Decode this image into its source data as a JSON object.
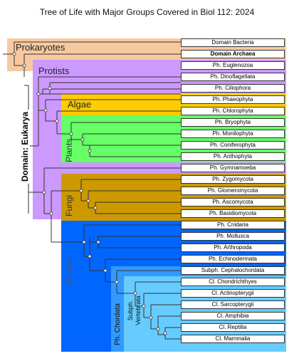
{
  "title": "Tree of Life with Major Groups Covered in Biol 112: 2024",
  "domain_label": "Domain: Eukarya",
  "groups": {
    "prokaryotes": "Prokaryotes",
    "protists": "Protists",
    "algae": "Algae",
    "plants": "Plants",
    "fungi": "Fungi",
    "animals": "Animals",
    "chordata": "Ph. Chordata",
    "vertebrata": "Subph. Vertebrata"
  },
  "colors": {
    "prokaryotes": "#f8c9a0",
    "protists": "#cc99ff",
    "algae": "#ffcc00",
    "plants": "#66ff66",
    "fungi": "#cc9900",
    "animals": "#0066ff",
    "chordata": "#3399ff",
    "vertebrata": "#66ccff"
  },
  "leaves": [
    "Domain Bacteria",
    "Domain Archaea",
    "Ph. Euglenozoa",
    "Ph. Dinoflagellata",
    "Ph. Ciliophora",
    "Ph. Phaeophyta",
    "Ph. Chlorophyta",
    "Ph. Bryophyta",
    "Ph. Monilophyta",
    "Ph. Coniferophyta",
    "Ph. Anthophyta",
    "Ph. Gymnamoeba",
    "Ph. Zygomycota",
    "Ph. Glomeromycota",
    "Ph. Ascomycota",
    "Ph. Basidiomycota",
    "Ph. Cnidaria",
    "Ph. Mollusca",
    "Ph. Arthropoda",
    "Ph. Echinodermata",
    "Subph. Cephalochordata",
    "Cl. Chondrichthyes",
    "Cl. Actinopterygii",
    "Cl. Sarcopterygii",
    "Cl. Amphibia",
    "Cl. Reptilia",
    "Cl. Mammalia"
  ]
}
